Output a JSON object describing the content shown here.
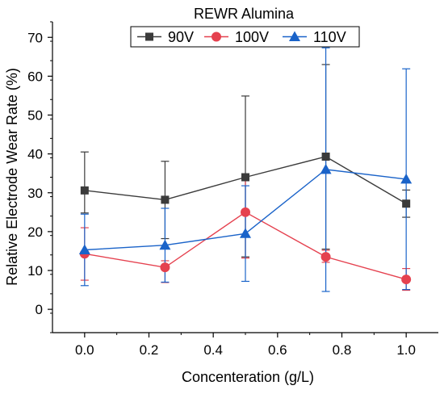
{
  "chart_data": {
    "type": "line",
    "title": "",
    "xlabel": "Concenteration (g/L)",
    "ylabel": "Relative Electrode Wear Rate (%)",
    "xlim": [
      -0.1,
      1.1
    ],
    "ylim": [
      -6,
      74
    ],
    "xticks": [
      0.0,
      0.2,
      0.4,
      0.6,
      0.8,
      1.0
    ],
    "xtick_labels": [
      "0.0",
      "0.2",
      "0.4",
      "0.6",
      "0.8",
      "1.0"
    ],
    "yticks": [
      0,
      10,
      20,
      30,
      40,
      50,
      60,
      70
    ],
    "ytick_labels": [
      "0",
      "10",
      "20",
      "30",
      "40",
      "50",
      "60",
      "70"
    ],
    "grid": false,
    "legend": {
      "title": "REWR Alumina",
      "placement": "top-center",
      "orientation": "horizontal"
    },
    "x": [
      0.0,
      0.25,
      0.5,
      0.75,
      1.0
    ],
    "series": [
      {
        "name": "90V",
        "color": "#3b3b3b",
        "marker": "square",
        "values": [
          30.6,
          28.2,
          34.0,
          39.3,
          27.2
        ],
        "error_low": [
          24.8,
          18.2,
          13.5,
          15.5,
          23.7
        ],
        "error_high": [
          40.5,
          38.1,
          54.9,
          63.0,
          30.7
        ]
      },
      {
        "name": "100V",
        "color": "#e5414f",
        "marker": "circle",
        "values": [
          14.3,
          10.8,
          25.0,
          13.5,
          7.7
        ],
        "error_low": [
          7.5,
          6.9,
          13.2,
          12.1,
          4.9
        ],
        "error_high": [
          21.0,
          12.5,
          33.5,
          15.2,
          10.5
        ]
      },
      {
        "name": "110V",
        "color": "#1a63c9",
        "marker": "triangle",
        "values": [
          15.3,
          16.5,
          19.5,
          36.0,
          33.5
        ],
        "error_low": [
          6.1,
          7.0,
          7.2,
          4.6,
          5.1
        ],
        "error_high": [
          24.5,
          26.0,
          31.8,
          67.3,
          61.9
        ]
      }
    ]
  }
}
